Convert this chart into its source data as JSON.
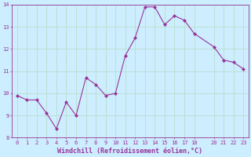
{
  "x": [
    0,
    1,
    2,
    3,
    4,
    5,
    6,
    7,
    8,
    9,
    10,
    11,
    12,
    13,
    14,
    15,
    16,
    17,
    18,
    20,
    21,
    22,
    23
  ],
  "y": [
    9.9,
    9.7,
    9.7,
    9.1,
    8.4,
    9.6,
    9.0,
    10.7,
    10.4,
    9.9,
    10.0,
    11.7,
    12.5,
    13.9,
    13.9,
    13.1,
    13.5,
    13.3,
    12.7,
    12.1,
    11.5,
    11.4,
    11.1
  ],
  "line_color": "#993399",
  "marker_color": "#993399",
  "background_color": "#cceeff",
  "grid_color": "#bbddcc",
  "xlabel": "Windchill (Refroidissement éolien,°C)",
  "ylim": [
    8,
    14
  ],
  "xlim": [
    -0.5,
    23.5
  ],
  "yticks": [
    8,
    9,
    10,
    11,
    12,
    13,
    14
  ],
  "xticks": [
    0,
    1,
    2,
    3,
    4,
    5,
    6,
    7,
    8,
    9,
    10,
    11,
    12,
    13,
    14,
    15,
    16,
    17,
    18,
    20,
    21,
    22,
    23
  ],
  "font_color": "#993399",
  "tick_fontsize": 5.0,
  "xlabel_fontsize": 6.0
}
